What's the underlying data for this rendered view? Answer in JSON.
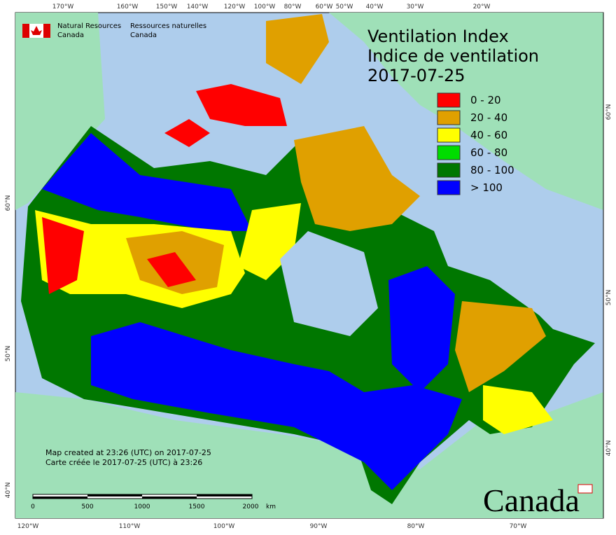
{
  "header": {
    "org_en": [
      "Natural Resources",
      "Canada"
    ],
    "org_fr": [
      "Ressources naturelles",
      "Canada"
    ]
  },
  "title": [
    "Ventilation Index",
    "Indice de ventilation",
    "2017-07-25"
  ],
  "legend": [
    {
      "label": "0 - 20",
      "color": "#ff0000"
    },
    {
      "label": "20 - 40",
      "color": "#e0a000"
    },
    {
      "label": "40 - 60",
      "color": "#ffff00"
    },
    {
      "label": "60 - 80",
      "color": "#00dd00"
    },
    {
      "label": "80 - 100",
      "color": "#007700"
    },
    {
      "label": "> 100",
      "color": "#0000ff"
    }
  ],
  "top_labels": [
    "170°W",
    "160°W",
    "150°W",
    "140°W",
    "120°W",
    "100°W",
    "80°W",
    "60°W",
    "50°W",
    "40°W",
    "30°W",
    "20°W"
  ],
  "bottom_labels": [
    "120°W",
    "110°W",
    "100°W",
    "90°W",
    "80°W",
    "70°W"
  ],
  "left_labels": [
    "60°N",
    "50°N",
    "40°N"
  ],
  "right_labels": [
    "60°N",
    "50°N",
    "40°N"
  ],
  "credits": [
    "Map created at 23:26 (UTC) on 2017-07-25",
    "Carte créée le 2017-07-25 (UTC) à 23:26"
  ],
  "scale": {
    "ticks": [
      "0",
      "500",
      "1000",
      "1500",
      "2000"
    ],
    "unit": "km"
  },
  "wordmark": "Canada"
}
